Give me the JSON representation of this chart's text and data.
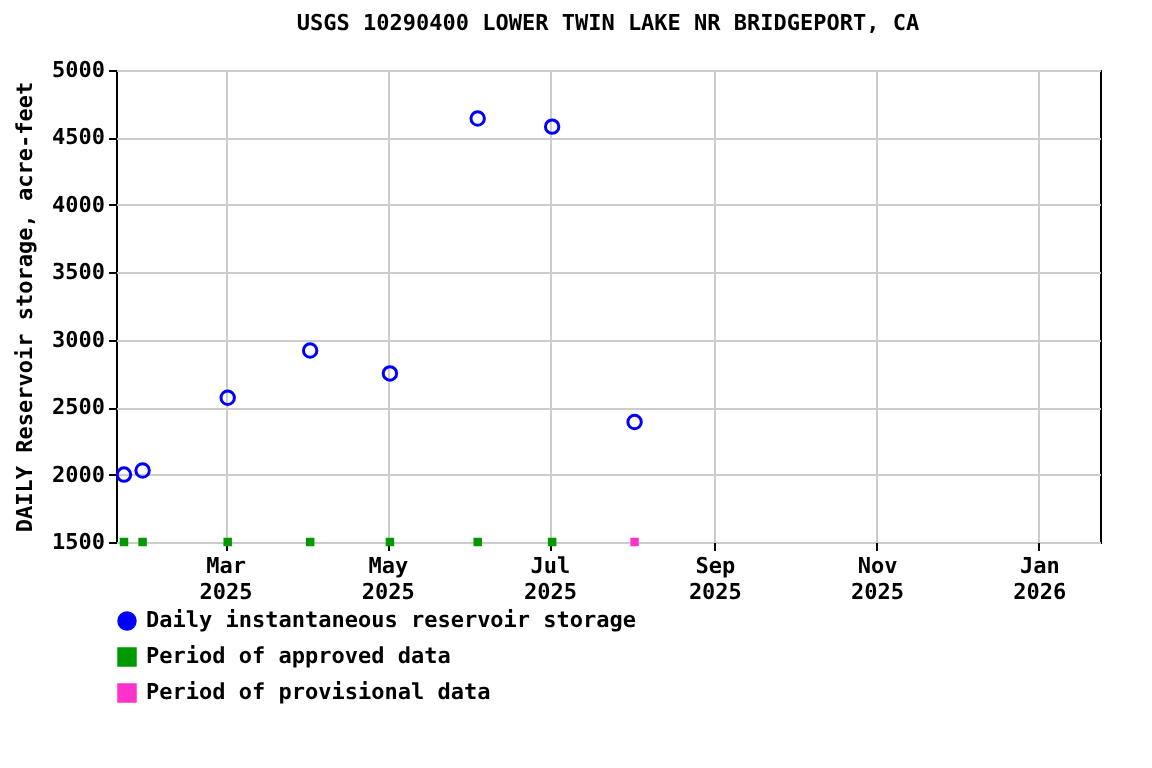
{
  "chart_data": {
    "type": "scatter",
    "title": "USGS 10290400 LOWER TWIN LAKE NR BRIDGEPORT, CA",
    "ylabel": "DAILY Reservoir storage, acre-feet",
    "x": [
      "2025-01-22",
      "2025-01-29",
      "2025-03-02",
      "2025-04-02",
      "2025-05-02",
      "2025-06-04",
      "2025-07-02",
      "2025-08-02"
    ],
    "series": [
      {
        "name": "Daily instantaneous reservoir storage",
        "color": "#0000ff",
        "marker": "circle",
        "values": [
          2000,
          2030,
          2570,
          2920,
          2750,
          4640,
          4580,
          2390
        ]
      },
      {
        "name": "Period of approved data",
        "color": "#009900",
        "marker": "square",
        "values": [
          1500,
          1500,
          1500,
          1500,
          1500,
          1500,
          1500,
          null
        ]
      },
      {
        "name": "Period of provisional data",
        "color": "#ff33cc",
        "marker": "square",
        "values": [
          null,
          null,
          null,
          null,
          null,
          null,
          null,
          1500
        ]
      }
    ],
    "xlim": [
      "2025-01-19",
      "2026-01-24"
    ],
    "xticks": [
      {
        "value": "2025-03-01",
        "label": "Mar 2025"
      },
      {
        "value": "2025-05-01",
        "label": "May 2025"
      },
      {
        "value": "2025-07-01",
        "label": "Jul 2025"
      },
      {
        "value": "2025-09-01",
        "label": "Sep 2025"
      },
      {
        "value": "2025-11-01",
        "label": "Nov 2025"
      },
      {
        "value": "2026-01-01",
        "label": "Jan 2026"
      }
    ],
    "ylim": [
      1500,
      5000
    ],
    "yticks": [
      1500,
      2000,
      2500,
      3000,
      3500,
      4000,
      4500,
      5000
    ],
    "grid": true,
    "legend": "bottom"
  }
}
